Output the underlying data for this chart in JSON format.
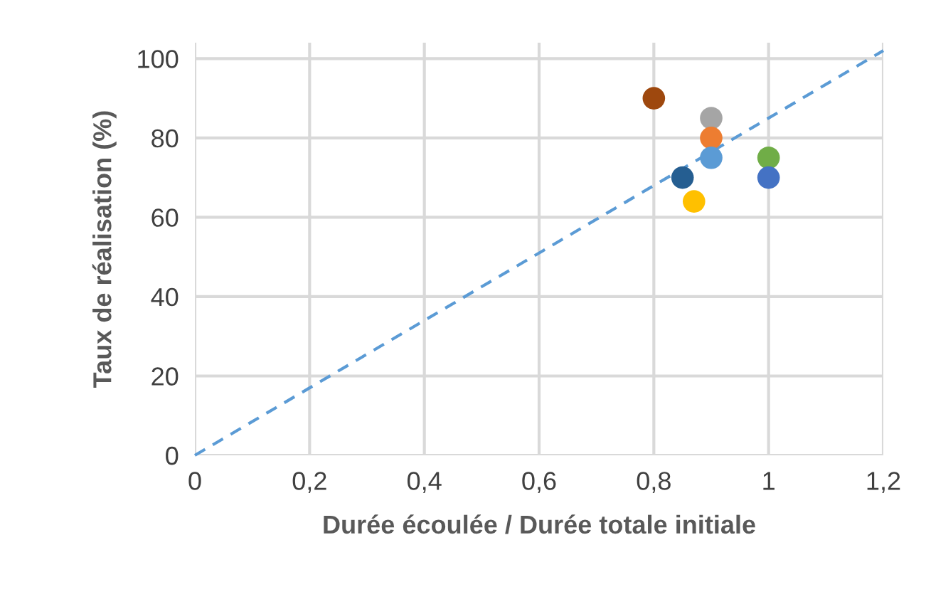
{
  "chart_data": {
    "type": "scatter",
    "xlabel": "Durée écoulée / Durée totale initiale",
    "ylabel": "Taux de réalisation (%)",
    "series": [
      {
        "x": [
          0.8,
          0.9,
          0.9,
          0.9,
          1.0,
          1.0,
          0.85,
          0.87
        ],
        "values": [
          90,
          85,
          80,
          75,
          75,
          70,
          70,
          64
        ],
        "colors": [
          "#9e480e",
          "#a5a5a5",
          "#ed7d31",
          "#5b9bd5",
          "#70ad47",
          "#4472c4",
          "#255e91",
          "#ffc000"
        ],
        "marker": "circle"
      },
      {
        "type": "line",
        "x": [
          0,
          1.2
        ],
        "values": [
          0,
          102
        ],
        "color": "#5b9bd5",
        "line_style": "dashed",
        "marker": "none"
      }
    ],
    "xlim": [
      0,
      1.2
    ],
    "xticks": [
      0,
      {
        "value": 0.2,
        "label": "0,2"
      },
      {
        "value": 0.4,
        "label": "0,4"
      },
      {
        "value": 0.6,
        "label": "0,6"
      },
      {
        "value": 0.8,
        "label": "0,8"
      },
      1,
      {
        "value": 1.2,
        "label": "1,2"
      }
    ],
    "ylim": [
      0,
      104
    ],
    "yticks": [
      0,
      20,
      40,
      60,
      80,
      100
    ],
    "grid": true,
    "legend": false
  }
}
